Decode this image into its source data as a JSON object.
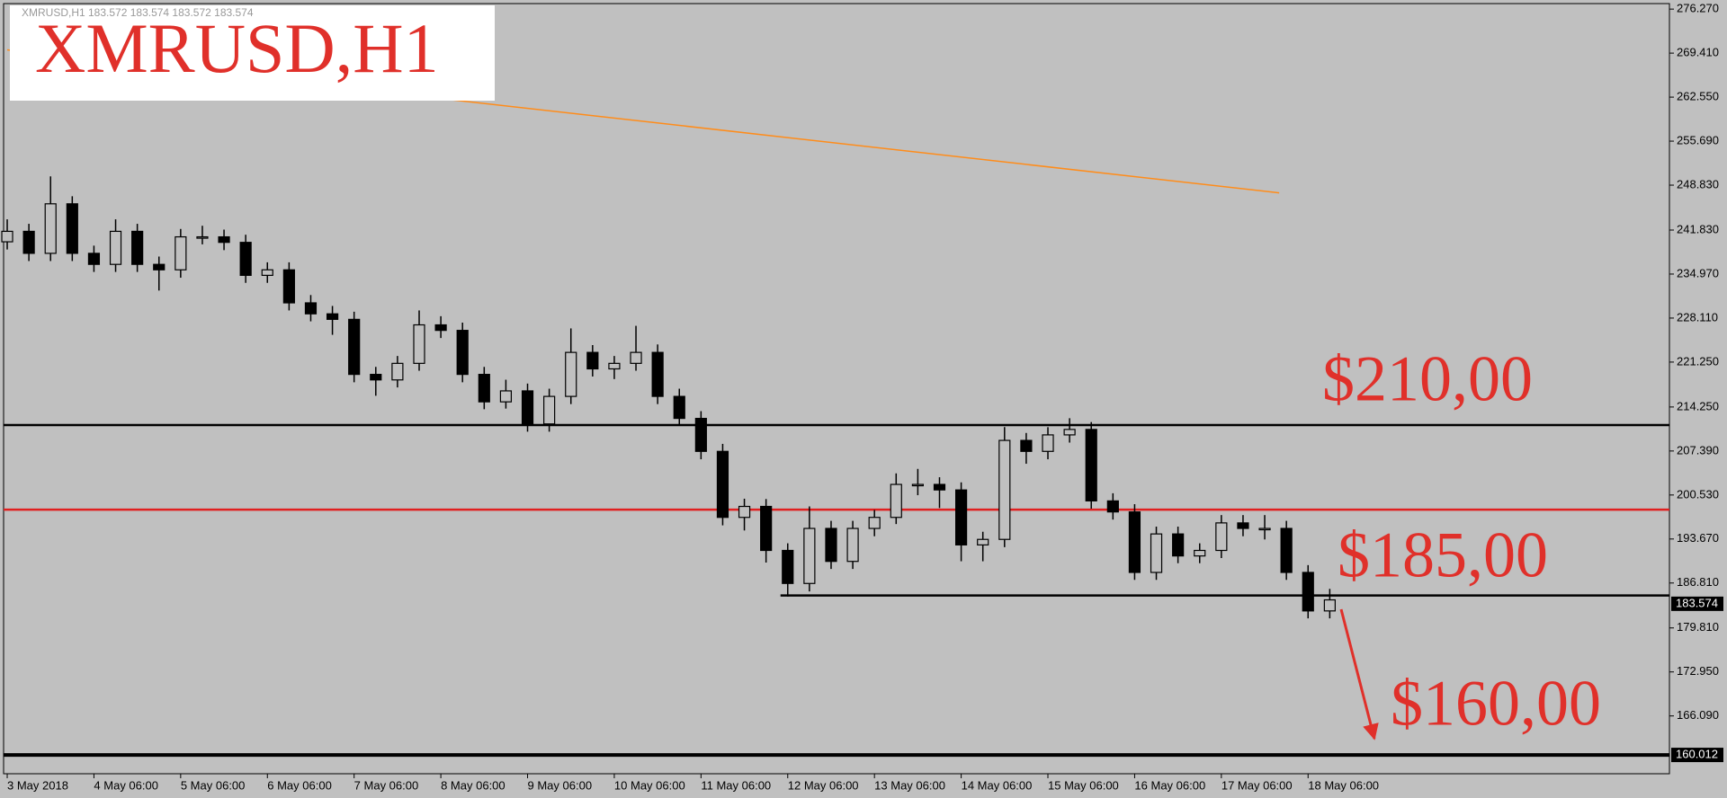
{
  "chart_data": {
    "type": "candlestick",
    "header": "XMRUSD,H1  183.572 183.574 183.572 183.574",
    "title": "XMRUSD,H1",
    "x": [
      6,
      12,
      18,
      24,
      30,
      36,
      42,
      48,
      54,
      60,
      66,
      72,
      78,
      84,
      90,
      96,
      102,
      108,
      114,
      120,
      126,
      132,
      138,
      144,
      150,
      156,
      162,
      168,
      174,
      180,
      186,
      192,
      198,
      204,
      210,
      216,
      222,
      228,
      234,
      240,
      246,
      252,
      258,
      264,
      270,
      276,
      282,
      288,
      294,
      300,
      306,
      312,
      318,
      324,
      330,
      336,
      342,
      348,
      354,
      360,
      366,
      372
    ],
    "open": [
      240.0,
      241.63,
      238.2,
      245.92,
      238.2,
      236.48,
      241.63,
      236.48,
      235.63,
      240.77,
      240.77,
      239.91,
      234.77,
      235.63,
      230.48,
      228.77,
      227.91,
      219.33,
      218.47,
      221.05,
      227.05,
      226.19,
      219.33,
      215.05,
      216.76,
      211.61,
      215.9,
      222.76,
      220.19,
      221.05,
      222.76,
      215.9,
      212.47,
      207.33,
      197.04,
      198.75,
      191.89,
      186.74,
      195.32,
      190.18,
      195.32,
      197.04,
      202.18,
      202.18,
      201.32,
      192.75,
      193.61,
      209.04,
      207.33,
      209.9,
      210.75,
      199.61,
      197.89,
      188.46,
      194.46,
      191.03,
      191.89,
      196.18,
      195.32,
      195.32,
      188.46,
      182.46
    ],
    "high": [
      243.5,
      242.8,
      250.2,
      247.1,
      239.4,
      243.5,
      242.8,
      237.7,
      242.0,
      242.5,
      241.9,
      241.1,
      236.8,
      236.8,
      231.7,
      230.0,
      229.1,
      220.5,
      222.2,
      229.3,
      228.4,
      227.4,
      220.5,
      218.5,
      217.9,
      217.1,
      226.5,
      223.9,
      222.2,
      226.9,
      224.0,
      217.1,
      213.6,
      208.5,
      199.95,
      199.9,
      193.0,
      198.75,
      196.5,
      196.5,
      198.2,
      203.9,
      204.6,
      203.3,
      202.5,
      194.8,
      211.11,
      210.2,
      211.1,
      212.5,
      211.9,
      200.8,
      199.1,
      195.6,
      195.6,
      193.0,
      197.4,
      197.4,
      197.4,
      196.5,
      189.6,
      185.9
    ],
    "low": [
      238.8,
      237.0,
      237.0,
      237.0,
      235.3,
      235.3,
      235.3,
      232.4,
      234.4,
      239.6,
      238.7,
      233.6,
      233.6,
      229.3,
      227.6,
      225.5,
      218.1,
      216.0,
      217.3,
      219.9,
      225.0,
      218.1,
      213.9,
      214.0,
      210.4,
      210.4,
      214.7,
      219.0,
      218.6,
      219.9,
      214.7,
      211.3,
      206.1,
      195.8,
      195.0,
      190.0,
      184.69,
      185.5,
      189.0,
      189.0,
      194.1,
      196.0,
      200.5,
      198.5,
      190.2,
      190.2,
      192.4,
      205.4,
      206.1,
      208.7,
      198.4,
      196.7,
      187.3,
      187.3,
      189.9,
      189.9,
      190.7,
      194.1,
      193.6,
      187.3,
      181.3,
      181.3
    ],
    "close": [
      241.63,
      238.2,
      245.92,
      238.2,
      236.48,
      241.63,
      236.48,
      235.63,
      240.77,
      240.77,
      239.91,
      234.77,
      235.63,
      230.48,
      228.77,
      227.91,
      219.33,
      218.47,
      221.05,
      227.05,
      226.19,
      219.33,
      215.05,
      216.76,
      211.61,
      215.9,
      222.76,
      220.19,
      221.05,
      222.76,
      215.9,
      212.47,
      207.33,
      197.04,
      198.75,
      191.89,
      186.74,
      195.32,
      190.18,
      195.32,
      197.04,
      202.18,
      202.18,
      201.32,
      192.75,
      193.61,
      209.04,
      207.33,
      209.9,
      210.75,
      199.61,
      197.89,
      188.46,
      194.46,
      191.03,
      191.89,
      196.18,
      195.32,
      195.32,
      188.46,
      182.46,
      184.18
    ],
    "xlim": [
      5,
      466
    ],
    "ylim": [
      157.08,
      277.13
    ],
    "xticks": [
      {
        "value": 6,
        "label": "3 May 2018"
      },
      {
        "value": 30,
        "label": "4 May 06:00"
      },
      {
        "value": 54,
        "label": "5 May 06:00"
      },
      {
        "value": 78,
        "label": "6 May 06:00"
      },
      {
        "value": 102,
        "label": "7 May 06:00"
      },
      {
        "value": 126,
        "label": "8 May 06:00"
      },
      {
        "value": 150,
        "label": "9 May 06:00"
      },
      {
        "value": 174,
        "label": "10 May 06:00"
      },
      {
        "value": 198,
        "label": "11 May 06:00"
      },
      {
        "value": 222,
        "label": "12 May 06:00"
      },
      {
        "value": 246,
        "label": "13 May 06:00"
      },
      {
        "value": 270,
        "label": "14 May 06:00"
      },
      {
        "value": 294,
        "label": "15 May 06:00"
      },
      {
        "value": 318,
        "label": "16 May 06:00"
      },
      {
        "value": 342,
        "label": "17 May 06:00"
      },
      {
        "value": 366,
        "label": "18 May 06:00"
      }
    ],
    "yticks": [
      {
        "value": 276.27,
        "label": "276.270"
      },
      {
        "value": 269.41,
        "label": "269.410"
      },
      {
        "value": 262.55,
        "label": "262.550"
      },
      {
        "value": 255.69,
        "label": "255.690"
      },
      {
        "value": 248.83,
        "label": "248.830"
      },
      {
        "value": 241.83,
        "label": "241.830"
      },
      {
        "value": 234.97,
        "label": "234.970"
      },
      {
        "value": 228.11,
        "label": "228.110"
      },
      {
        "value": 221.25,
        "label": "221.250"
      },
      {
        "value": 214.25,
        "label": "214.250"
      },
      {
        "value": 207.39,
        "label": "207.390"
      },
      {
        "value": 200.53,
        "label": "200.530"
      },
      {
        "value": 193.67,
        "label": "193.670"
      },
      {
        "value": 186.81,
        "label": "186.810"
      },
      {
        "value": 179.81,
        "label": "179.810"
      },
      {
        "value": 172.95,
        "label": "172.950"
      },
      {
        "value": 166.09,
        "label": "166.090"
      }
    ],
    "hlines": [
      {
        "value": 211.44,
        "color": "#000000",
        "from": 5
      },
      {
        "value": 198.24,
        "color": "#e02020",
        "from": 5
      },
      {
        "value": 184.86,
        "color": "#000000",
        "from": 220
      },
      {
        "value": 160.012,
        "color": "#000000",
        "from": 5
      }
    ],
    "price_labels": [
      183.574,
      160.012
    ],
    "trendline": {
      "x": [
        6,
        358
      ],
      "y": [
        269.92,
        247.63
      ],
      "color": "#ff8c1a"
    },
    "annotations": [
      "$210,00",
      "$185,00",
      "$160,00"
    ],
    "bull_color": "#c0c0c0",
    "bear_color": "#000000"
  }
}
